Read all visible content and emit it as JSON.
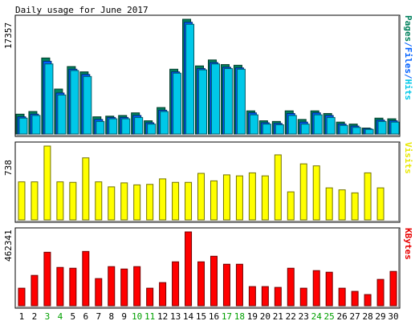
{
  "chart_data": {
    "type": "bar",
    "title": "Daily usage for June 2017",
    "categories": [
      "1",
      "2",
      "3",
      "4",
      "5",
      "6",
      "7",
      "8",
      "9",
      "10",
      "11",
      "12",
      "13",
      "14",
      "15",
      "16",
      "17",
      "18",
      "19",
      "20",
      "21",
      "22",
      "23",
      "24",
      "25",
      "26",
      "27",
      "28",
      "29",
      "30"
    ],
    "weekend_days": [
      "3",
      "4",
      "10",
      "11",
      "17",
      "18",
      "24",
      "25"
    ],
    "panels": [
      {
        "id": "pages-files-hits",
        "ylabel_parts": [
          {
            "text": "Pages",
            "color": "#00805c"
          },
          {
            "text": "/",
            "color": "#0060ff"
          },
          {
            "text": "Files",
            "color": "#0060ff"
          },
          {
            "text": "/",
            "color": "#0060ff"
          },
          {
            "text": "Hits",
            "color": "#00c8e8"
          }
        ],
        "max_label": "17357",
        "ylim": [
          0,
          17357
        ],
        "series": [
          {
            "name": "Hits",
            "color": "#00805c",
            "values": [
              3000,
              3400,
              11500,
              6800,
              10200,
              9400,
              2600,
              2700,
              2800,
              3200,
              2000,
              4000,
              9800,
              17357,
              10300,
              11200,
              10500,
              10400,
              3500,
              2000,
              1900,
              3500,
              2200,
              3500,
              3100,
              1800,
              1500,
              900,
              2400,
              2300
            ]
          },
          {
            "name": "Files",
            "color": "#0060ff",
            "values": [
              2600,
              3000,
              11000,
              6200,
              9800,
              9000,
              2200,
              2500,
              2500,
              2800,
              1700,
              3600,
              9400,
              16900,
              9900,
              10800,
              10100,
              10000,
              3200,
              1700,
              1600,
              3100,
              1800,
              3200,
              2800,
              1500,
              1200,
              800,
              2100,
              2000
            ]
          },
          {
            "name": "Pages",
            "color": "#00c8e8",
            "values": [
              2400,
              2800,
              10600,
              5900,
              9600,
              8700,
              1900,
              2300,
              2300,
              2500,
              1500,
              3400,
              9200,
              16600,
              9700,
              10600,
              9900,
              9800,
              2900,
              1500,
              1400,
              2800,
              1500,
              2900,
              2500,
              1300,
              1000,
              700,
              1900,
              1800
            ]
          }
        ]
      },
      {
        "id": "visits",
        "ylabel_parts": [
          {
            "text": "Visits",
            "color": "#e8e800"
          }
        ],
        "max_label": "738",
        "ylim": [
          0,
          738
        ],
        "series": [
          {
            "name": "Visits",
            "color": "#ffff00",
            "values": [
              380,
              380,
              738,
              380,
              375,
              620,
              380,
              330,
              370,
              350,
              355,
              410,
              375,
              375,
              465,
              390,
              450,
              440,
              470,
              440,
              650,
              280,
              560,
              540,
              320,
              300,
              270,
              470,
              320,
              0
            ]
          }
        ]
      },
      {
        "id": "kbytes",
        "ylabel_parts": [
          {
            "text": "KBytes",
            "color": "#e80000"
          }
        ],
        "max_label": "462341",
        "ylim": [
          0,
          462341
        ],
        "series": [
          {
            "name": "KBytes",
            "color": "#ff0000",
            "values": [
              110000,
              190000,
              335000,
              240000,
              235000,
              340000,
              170000,
              245000,
              230000,
              245000,
              110000,
              145000,
              275000,
              462341,
              275000,
              310000,
              260000,
              260000,
              120000,
              120000,
              115000,
              235000,
              110000,
              220000,
              210000,
              110000,
              90000,
              70000,
              165000,
              215000
            ]
          }
        ]
      }
    ],
    "grid": false,
    "legend": "right-side vertical labels per panel"
  }
}
